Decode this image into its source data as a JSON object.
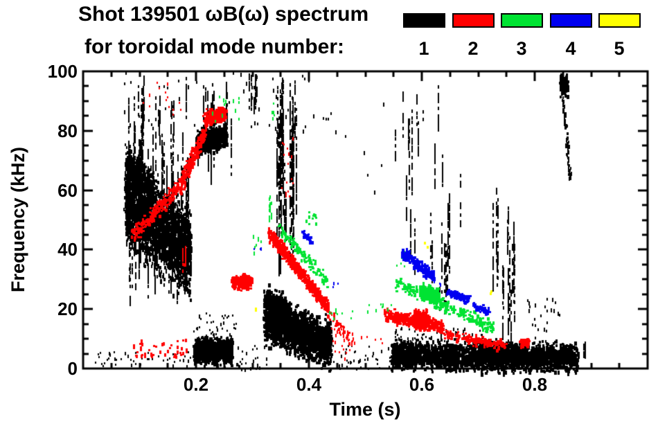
{
  "header": {
    "title": "Shot 139501 ωB(ω) spectrum",
    "subtitle": "for toroidal mode number:",
    "legend": [
      {
        "mode": "1",
        "color": "#000000"
      },
      {
        "mode": "2",
        "color": "#ff0000"
      },
      {
        "mode": "3",
        "color": "#00e332"
      },
      {
        "mode": "4",
        "color": "#0000f0"
      },
      {
        "mode": "5",
        "color": "#ffff00"
      }
    ]
  },
  "chart_data": {
    "type": "scatter",
    "title": "Shot 139501 ωB(ω) spectrum for toroidal mode number: 1 2 3 4 5",
    "xlabel": "Time (s)",
    "ylabel": "Frequency (kHz)",
    "xlim": [
      0.0,
      1.0
    ],
    "ylim": [
      0,
      100
    ],
    "grid": false,
    "legend_position": "top",
    "x_major_ticks": [
      0.2,
      0.4,
      0.6,
      0.8
    ],
    "x_tick_labels": [
      "0.2",
      "0.4",
      "0.6",
      "0.8"
    ],
    "x_minor_step": 0.05,
    "y_major_ticks": [
      0,
      20,
      40,
      60,
      80,
      100
    ],
    "y_tick_labels": [
      "0",
      "20",
      "40",
      "60",
      "80",
      "100"
    ],
    "y_minor_step": 5,
    "series": [
      {
        "name": "n=1",
        "mode": 1,
        "color": "#000000",
        "clusters": [
          {
            "kind": "band",
            "t": [
              0.073,
              0.19
            ],
            "f": [
              58,
              38
            ],
            "hw": 13,
            "n": 2400,
            "w": 2,
            "h": 5
          },
          {
            "kind": "band",
            "t": [
              0.075,
              0.125
            ],
            "f": [
              70,
              60
            ],
            "hw": 5,
            "n": 500,
            "w": 2,
            "h": 4
          },
          {
            "kind": "streaks",
            "t": [
              0.073,
              0.19
            ],
            "f": [
              22,
              80
            ],
            "n": 70,
            "len": [
              10,
              30
            ]
          },
          {
            "kind": "streaks",
            "t": [
              0.08,
              0.27
            ],
            "f": [
              62,
              100
            ],
            "n": 40,
            "len": [
              6,
              26
            ]
          },
          {
            "kind": "specks",
            "t": [
              0.07,
              0.45
            ],
            "f": [
              80,
              100
            ],
            "n": 55,
            "w": 2,
            "h": 4
          },
          {
            "kind": "band",
            "t": [
              0.195,
              0.262
            ],
            "f": [
              6.5,
              6
            ],
            "hw": 3.8,
            "n": 850,
            "w": 3,
            "h": 4
          },
          {
            "kind": "specks",
            "t": [
              0.195,
              0.27
            ],
            "f": [
              10,
              19
            ],
            "n": 45,
            "w": 2,
            "h": 3
          },
          {
            "kind": "band",
            "t": [
              0.2,
              0.252
            ],
            "f": [
              76,
              79
            ],
            "hw": 3.6,
            "n": 650,
            "w": 3,
            "h": 4
          },
          {
            "kind": "streaks",
            "t": [
              0.287,
              0.312
            ],
            "f": [
              85,
              100
            ],
            "n": 7,
            "len": [
              5,
              14
            ]
          },
          {
            "kind": "streaks",
            "t": [
              0.342,
              0.378
            ],
            "f": [
              32,
              100
            ],
            "n": 26,
            "len": [
              18,
              55
            ]
          },
          {
            "kind": "band",
            "t": [
              0.32,
              0.438
            ],
            "f": [
              17,
              8
            ],
            "hw": 7,
            "n": 1700,
            "w": 3,
            "h": 4
          },
          {
            "kind": "band",
            "t": [
              0.32,
              0.365
            ],
            "f": [
              24,
              19
            ],
            "hw": 4,
            "n": 350,
            "w": 3,
            "h": 4
          },
          {
            "kind": "specks",
            "t": [
              0.44,
              0.545
            ],
            "f": [
              0,
              8
            ],
            "n": 40,
            "w": 2,
            "h": 3
          },
          {
            "kind": "band",
            "t": [
              0.545,
              0.875
            ],
            "f": [
              5,
              4
            ],
            "hw": 4.3,
            "n": 2300,
            "w": 3,
            "h": 4
          },
          {
            "kind": "band",
            "t": [
              0.7,
              0.785
            ],
            "f": [
              5.5,
              5
            ],
            "hw": 3.5,
            "n": 450,
            "w": 3,
            "h": 4
          },
          {
            "kind": "specks",
            "t": [
              0.55,
              0.71
            ],
            "f": [
              9,
              14
            ],
            "n": 55,
            "w": 2,
            "h": 3
          },
          {
            "kind": "streaks",
            "t": [
              0.55,
              0.635
            ],
            "f": [
              30,
              100
            ],
            "n": 13,
            "len": [
              8,
              30
            ]
          },
          {
            "kind": "streaks",
            "t": [
              0.615,
              0.675
            ],
            "f": [
              12,
              78
            ],
            "n": 12,
            "len": [
              8,
              28
            ]
          },
          {
            "kind": "streaks",
            "t": [
              0.725,
              0.775
            ],
            "f": [
              2,
              65
            ],
            "n": 14,
            "len": [
              8,
              30
            ]
          },
          {
            "kind": "specks",
            "t": [
              0.785,
              0.845
            ],
            "f": [
              4,
              24
            ],
            "n": 30,
            "w": 2,
            "h": 4
          },
          {
            "kind": "band",
            "t": [
              0.845,
              0.857
            ],
            "f": [
              96,
              96
            ],
            "hw": 3,
            "n": 160,
            "w": 3,
            "h": 4
          },
          {
            "kind": "band",
            "t": [
              0.848,
              0.858
            ],
            "f": [
              92,
              75
            ],
            "hw": 0.8,
            "n": 40,
            "w": 2,
            "h": 4
          },
          {
            "kind": "band",
            "t": [
              0.855,
              0.862
            ],
            "f": [
              76,
              65
            ],
            "hw": 0.8,
            "n": 30,
            "w": 2,
            "h": 4
          },
          {
            "kind": "specks",
            "t": [
              0.02,
              0.19
            ],
            "f": [
              1,
              6
            ],
            "n": 45,
            "w": 2,
            "h": 3
          },
          {
            "kind": "specks",
            "t": [
              0.27,
              0.325
            ],
            "f": [
              0,
              8
            ],
            "n": 28,
            "w": 2,
            "h": 3
          },
          {
            "kind": "specks",
            "t": [
              0.46,
              0.545
            ],
            "f": [
              50,
              90
            ],
            "n": 6,
            "w": 2,
            "h": 4
          },
          {
            "kind": "streaks",
            "t": [
              0.885,
              0.892
            ],
            "f": [
              2,
              10
            ],
            "n": 2,
            "len": [
              4,
              8
            ]
          }
        ]
      },
      {
        "name": "n=2",
        "mode": 2,
        "color": "#ff0000",
        "clusters": [
          {
            "kind": "band",
            "t": [
              0.085,
              0.17
            ],
            "f": [
              45,
              62
            ],
            "hw": 2.6,
            "n": 200,
            "w": 3,
            "h": 3
          },
          {
            "kind": "band",
            "t": [
              0.17,
              0.215
            ],
            "f": [
              62,
              80
            ],
            "hw": 3,
            "n": 240,
            "w": 3,
            "h": 3
          },
          {
            "kind": "band",
            "t": [
              0.213,
              0.25
            ],
            "f": [
              84,
              86.5
            ],
            "hw": 2.4,
            "n": 340,
            "w": 3,
            "h": 3
          },
          {
            "kind": "specks",
            "t": [
              0.085,
              0.185
            ],
            "f": [
              4,
              10
            ],
            "n": 48,
            "w": 3,
            "h": 3
          },
          {
            "kind": "specks",
            "t": [
              0.1,
              0.18
            ],
            "f": [
              84,
              97
            ],
            "n": 14,
            "w": 2,
            "h": 3
          },
          {
            "kind": "streaks",
            "t": [
              0.175,
              0.181
            ],
            "f": [
              33,
              48
            ],
            "n": 3,
            "len": [
              5,
              12
            ]
          },
          {
            "kind": "band",
            "t": [
              0.262,
              0.296
            ],
            "f": [
              29.5,
              29.5
            ],
            "hw": 2.2,
            "n": 280,
            "w": 3,
            "h": 3
          },
          {
            "kind": "band",
            "t": [
              0.327,
              0.432
            ],
            "f": [
              46,
              21
            ],
            "hw": 2.2,
            "n": 620,
            "w": 3,
            "h": 3
          },
          {
            "kind": "band",
            "t": [
              0.43,
              0.472
            ],
            "f": [
              20,
              10
            ],
            "hw": 2,
            "n": 55,
            "w": 2,
            "h": 3
          },
          {
            "kind": "specks",
            "t": [
              0.438,
              0.475
            ],
            "f": [
              2,
              16
            ],
            "n": 20,
            "w": 2,
            "h": 3
          },
          {
            "kind": "specks",
            "t": [
              0.35,
              0.372
            ],
            "f": [
              55,
              80
            ],
            "n": 16,
            "w": 2,
            "h": 3
          },
          {
            "kind": "band",
            "t": [
              0.532,
              0.635
            ],
            "f": [
              18.5,
              14.5
            ],
            "hw": 2,
            "n": 380,
            "w": 3,
            "h": 3
          },
          {
            "kind": "band",
            "t": [
              0.585,
              0.61
            ],
            "f": [
              17,
              16.5
            ],
            "hw": 2.8,
            "n": 240,
            "w": 3,
            "h": 4
          },
          {
            "kind": "band",
            "t": [
              0.635,
              0.748
            ],
            "f": [
              12,
              8
            ],
            "hw": 1.7,
            "n": 160,
            "w": 3,
            "h": 3
          },
          {
            "kind": "band",
            "t": [
              0.773,
              0.788
            ],
            "f": [
              9,
              9
            ],
            "hw": 1.4,
            "n": 60,
            "w": 3,
            "h": 3
          },
          {
            "kind": "specks",
            "t": [
              0.455,
              0.53
            ],
            "f": [
              8,
              13
            ],
            "n": 12,
            "w": 2,
            "h": 3
          }
        ]
      },
      {
        "name": "n=3",
        "mode": 3,
        "color": "#00e332",
        "clusters": [
          {
            "kind": "specks",
            "t": [
              0.2,
              0.285
            ],
            "f": [
              82,
              92
            ],
            "n": 12,
            "w": 2,
            "h": 4
          },
          {
            "kind": "specks",
            "t": [
              0.3,
              0.318
            ],
            "f": [
              38,
              46
            ],
            "n": 7,
            "w": 2,
            "h": 4
          },
          {
            "kind": "streaks",
            "t": [
              0.326,
              0.336
            ],
            "f": [
              50,
              60
            ],
            "n": 3,
            "len": [
              4,
              10
            ]
          },
          {
            "kind": "specks",
            "t": [
              0.332,
              0.346
            ],
            "f": [
              82,
              90
            ],
            "n": 6,
            "w": 2,
            "h": 3
          },
          {
            "kind": "band",
            "t": [
              0.345,
              0.432
            ],
            "f": [
              48,
              29
            ],
            "hw": 2,
            "n": 120,
            "w": 3,
            "h": 3
          },
          {
            "kind": "specks",
            "t": [
              0.394,
              0.413
            ],
            "f": [
              48,
              53
            ],
            "n": 10,
            "w": 3,
            "h": 3
          },
          {
            "kind": "band",
            "t": [
              0.553,
              0.725
            ],
            "f": [
              29,
              14
            ],
            "hw": 2.2,
            "n": 260,
            "w": 3,
            "h": 3
          },
          {
            "kind": "band",
            "t": [
              0.596,
              0.628
            ],
            "f": [
              26.5,
              25
            ],
            "hw": 2.4,
            "n": 200,
            "w": 3,
            "h": 4
          },
          {
            "kind": "specks",
            "t": [
              0.435,
              0.478
            ],
            "f": [
              17,
              21
            ],
            "n": 9,
            "w": 2,
            "h": 3
          },
          {
            "kind": "specks",
            "t": [
              0.5,
              0.548
            ],
            "f": [
              18,
              22
            ],
            "n": 9,
            "w": 2,
            "h": 3
          },
          {
            "kind": "specks",
            "t": [
              0.553,
              0.578
            ],
            "f": [
              33,
              40
            ],
            "n": 6,
            "w": 2,
            "h": 3
          }
        ]
      },
      {
        "name": "n=4",
        "mode": 4,
        "color": "#0000f0",
        "clusters": [
          {
            "kind": "band",
            "t": [
              0.388,
              0.404
            ],
            "f": [
              46,
              43
            ],
            "hw": 1,
            "n": 40,
            "w": 3,
            "h": 3
          },
          {
            "kind": "band",
            "t": [
              0.563,
              0.618
            ],
            "f": [
              40,
              31
            ],
            "hw": 1.8,
            "n": 150,
            "w": 3,
            "h": 4
          },
          {
            "kind": "band",
            "t": [
              0.645,
              0.683
            ],
            "f": [
              26,
              23.5
            ],
            "hw": 1.3,
            "n": 85,
            "w": 3,
            "h": 3
          },
          {
            "kind": "band",
            "t": [
              0.69,
              0.718
            ],
            "f": [
              21.5,
              19.5
            ],
            "hw": 1.1,
            "n": 55,
            "w": 3,
            "h": 3
          },
          {
            "kind": "specks",
            "t": [
              0.3,
              0.315
            ],
            "f": [
              40,
              44
            ],
            "n": 3,
            "w": 2,
            "h": 3
          },
          {
            "kind": "specks",
            "t": [
              0.44,
              0.452
            ],
            "f": [
              27,
              30
            ],
            "n": 3,
            "w": 2,
            "h": 3
          },
          {
            "kind": "specks",
            "t": [
              0.62,
              0.635
            ],
            "f": [
              28,
              31
            ],
            "n": 4,
            "w": 2,
            "h": 3
          }
        ]
      },
      {
        "name": "n=5",
        "mode": 5,
        "color": "#ffff00",
        "clusters": [
          {
            "kind": "specks",
            "t": [
              0.302,
              0.31
            ],
            "f": [
              19.5,
              21.5
            ],
            "n": 2,
            "w": 3,
            "h": 4
          },
          {
            "kind": "specks",
            "t": [
              0.602,
              0.612
            ],
            "f": [
              41,
              43
            ],
            "n": 2,
            "w": 3,
            "h": 4
          },
          {
            "kind": "specks",
            "t": [
              0.714,
              0.722
            ],
            "f": [
              25,
              27
            ],
            "n": 2,
            "w": 3,
            "h": 4
          }
        ]
      }
    ]
  }
}
